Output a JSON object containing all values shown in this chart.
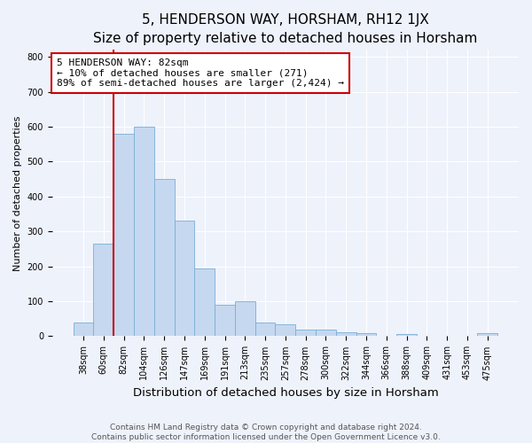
{
  "title": "5, HENDERSON WAY, HORSHAM, RH12 1JX",
  "subtitle": "Size of property relative to detached houses in Horsham",
  "xlabel": "Distribution of detached houses by size in Horsham",
  "ylabel": "Number of detached properties",
  "categories": [
    "38sqm",
    "60sqm",
    "82sqm",
    "104sqm",
    "126sqm",
    "147sqm",
    "169sqm",
    "191sqm",
    "213sqm",
    "235sqm",
    "257sqm",
    "278sqm",
    "300sqm",
    "322sqm",
    "344sqm",
    "366sqm",
    "388sqm",
    "409sqm",
    "431sqm",
    "453sqm",
    "475sqm"
  ],
  "values": [
    40,
    265,
    580,
    600,
    450,
    330,
    195,
    90,
    100,
    38,
    35,
    20,
    18,
    12,
    10,
    0,
    7,
    0,
    0,
    0,
    8
  ],
  "bar_color": "#c5d8f0",
  "bar_edgecolor": "#7aafd4",
  "highlight_index": 2,
  "annotation_line1": "5 HENDERSON WAY: 82sqm",
  "annotation_line2": "← 10% of detached houses are smaller (271)",
  "annotation_line3": "89% of semi-detached houses are larger (2,424) →",
  "annotation_box_facecolor": "#ffffff",
  "annotation_box_edgecolor": "#cc0000",
  "red_line_color": "#cc0000",
  "ylim": [
    0,
    820
  ],
  "yticks": [
    0,
    100,
    200,
    300,
    400,
    500,
    600,
    700,
    800
  ],
  "background_color": "#eef2fb",
  "plot_background": "#eef2fb",
  "footer_line1": "Contains HM Land Registry data © Crown copyright and database right 2024.",
  "footer_line2": "Contains public sector information licensed under the Open Government Licence v3.0.",
  "title_fontsize": 11,
  "subtitle_fontsize": 9.5,
  "xlabel_fontsize": 9.5,
  "ylabel_fontsize": 8,
  "tick_fontsize": 7,
  "annotation_fontsize": 8,
  "footer_fontsize": 6.5
}
